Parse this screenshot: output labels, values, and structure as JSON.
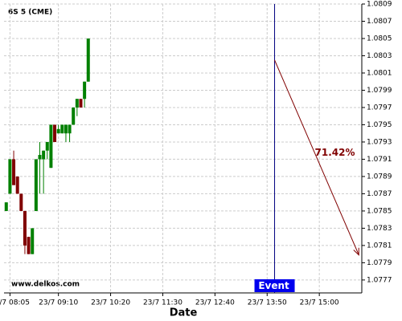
{
  "chart_data": {
    "type": "candlestick",
    "title": "6S 5 (CME)",
    "watermark": "www.delkos.com",
    "x_label": "Date",
    "up_color": "#008000",
    "down_color": "#800000",
    "grid": true,
    "xlim": [
      477,
      957
    ],
    "xticks": [
      {
        "value": 485,
        "label": "23/7 08:05"
      },
      {
        "value": 550,
        "label": "23/7 09:10"
      },
      {
        "value": 620,
        "label": "23/7 10:20"
      },
      {
        "value": 690,
        "label": "23/7 11:30"
      },
      {
        "value": 760,
        "label": "23/7 12:40"
      },
      {
        "value": 830,
        "label": "23/7 13:50"
      },
      {
        "value": 900,
        "label": "23/7 15:00"
      }
    ],
    "ylim": [
      1.07755,
      1.0809
    ],
    "yticks": [
      1.0809,
      1.0807,
      1.0805,
      1.0803,
      1.0801,
      1.0799,
      1.0797,
      1.0795,
      1.0793,
      1.0791,
      1.0789,
      1.0787,
      1.0785,
      1.0783,
      1.0781,
      1.0779,
      1.0777
    ],
    "x": [
      480,
      485,
      490,
      495,
      500,
      505,
      510,
      515,
      520,
      525,
      530,
      535,
      540,
      545,
      550,
      555,
      560,
      565,
      570,
      575,
      580,
      585,
      590
    ],
    "open": [
      1.0785,
      1.0787,
      1.0791,
      1.0789,
      1.0787,
      1.0785,
      1.0782,
      1.078,
      1.0785,
      1.0791,
      1.0791,
      1.0792,
      1.079,
      1.0795,
      1.0794,
      1.0794,
      1.0794,
      1.0794,
      1.0795,
      1.0797,
      1.0798,
      1.0798,
      1.08
    ],
    "high": [
      1.0786,
      1.0791,
      1.0792,
      1.0789,
      1.0787,
      1.0785,
      1.0782,
      1.0783,
      1.0791,
      1.0793,
      1.0792,
      1.0793,
      1.0795,
      1.0795,
      1.0795,
      1.0795,
      1.0795,
      1.0795,
      1.0797,
      1.0798,
      1.0798,
      1.08,
      1.0805
    ],
    "low": [
      1.0785,
      1.0787,
      1.0788,
      1.0787,
      1.0785,
      1.078,
      1.078,
      1.078,
      1.0785,
      1.0787,
      1.0787,
      1.0791,
      1.079,
      1.0793,
      1.0794,
      1.0794,
      1.0793,
      1.0793,
      1.0795,
      1.0796,
      1.0797,
      1.0797,
      1.08
    ],
    "close": [
      1.0786,
      1.0791,
      1.0788,
      1.0787,
      1.0785,
      1.0781,
      1.078,
      1.0783,
      1.0791,
      1.07915,
      1.0792,
      1.0793,
      1.0795,
      1.0793,
      1.07945,
      1.0795,
      1.0795,
      1.0795,
      1.0797,
      1.0798,
      1.0797,
      1.08,
      1.0805
    ],
    "event": {
      "label": "Event",
      "x": 840,
      "color": "#000080"
    },
    "forecast": {
      "label": "71.42%",
      "x": [
        840,
        953
      ],
      "y": [
        1.08025,
        1.07799
      ],
      "color": "#800000"
    }
  }
}
